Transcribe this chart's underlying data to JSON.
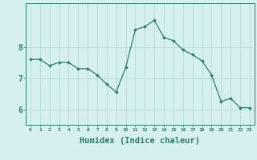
{
  "x": [
    0,
    1,
    2,
    3,
    4,
    5,
    6,
    7,
    8,
    9,
    10,
    11,
    12,
    13,
    14,
    15,
    16,
    17,
    18,
    19,
    20,
    21,
    22,
    23
  ],
  "y": [
    7.6,
    7.6,
    7.4,
    7.5,
    7.5,
    7.3,
    7.3,
    7.1,
    6.8,
    6.55,
    7.35,
    8.55,
    8.65,
    8.85,
    8.3,
    8.2,
    7.9,
    7.75,
    7.55,
    7.1,
    6.25,
    6.35,
    6.05,
    6.05
  ],
  "line_color": "#2e7d6e",
  "marker": "D",
  "marker_size": 2.0,
  "bg_color": "#d6f0f0",
  "grid_color": "#b8dada",
  "axis_color": "#2e7d6e",
  "tick_color": "#2e7d6e",
  "xlabel": "Humidex (Indice chaleur)",
  "xlabel_fontsize": 7.5,
  "ytick_labels": [
    "6",
    "7",
    "8"
  ],
  "ytick_vals": [
    6,
    7,
    8
  ],
  "ylim": [
    5.5,
    9.4
  ],
  "xlim": [
    -0.5,
    23.5
  ],
  "xtick_labels": [
    "0",
    "1",
    "2",
    "3",
    "4",
    "5",
    "6",
    "7",
    "8",
    "9",
    "10",
    "11",
    "12",
    "13",
    "14",
    "15",
    "16",
    "17",
    "18",
    "19",
    "20",
    "21",
    "22",
    "23"
  ]
}
